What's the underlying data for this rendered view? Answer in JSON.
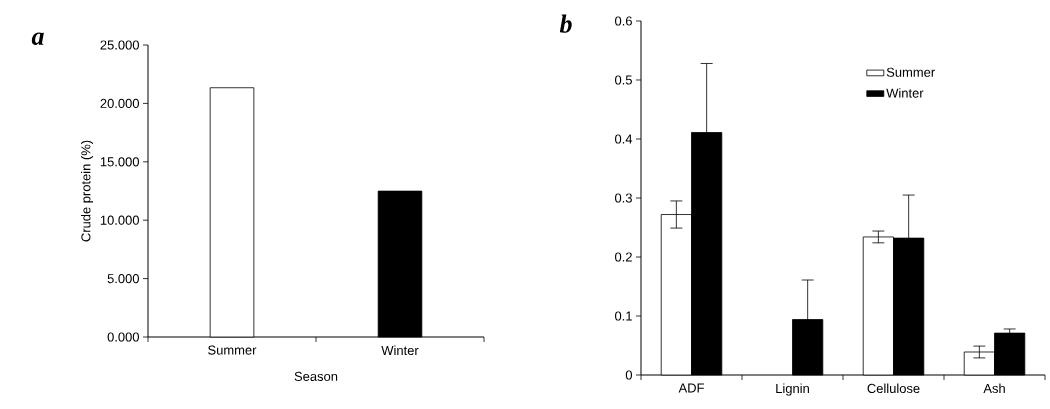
{
  "chart_data": [
    {
      "type": "bar",
      "title": "a",
      "xlabel": "Season",
      "ylabel": "Crude protein (%)",
      "categories": [
        "Summer",
        "Winter"
      ],
      "values": [
        21.34,
        12.49
      ],
      "colors": [
        "#ffffff",
        "#000000"
      ],
      "ylim": [
        0,
        25
      ],
      "yticks": [
        {
          "value": 0,
          "label": "0.000"
        },
        {
          "value": 5,
          "label": "5.000"
        },
        {
          "value": 10,
          "label": "10.000"
        },
        {
          "value": 15,
          "label": "15.000"
        },
        {
          "value": 20,
          "label": "20.000"
        },
        {
          "value": 25,
          "label": "25.000"
        }
      ]
    },
    {
      "type": "bar",
      "title": "b",
      "categories": [
        "ADF",
        "Lignin",
        "Cellulose",
        "Ash"
      ],
      "legend": "top",
      "series": [
        {
          "name": "Summer",
          "color": "#ffffff",
          "values": [
            0.272,
            null,
            0.234,
            0.039
          ],
          "errors": [
            0.023,
            null,
            0.01,
            0.01
          ]
        },
        {
          "name": "Winter",
          "color": "#000000",
          "values": [
            0.411,
            0.094,
            0.232,
            0.071
          ],
          "errors": [
            0.117,
            0.067,
            0.073,
            0.007
          ]
        }
      ],
      "ylim": [
        0,
        0.6
      ],
      "yticks": [
        0,
        0.1,
        0.2,
        0.3,
        0.4,
        0.5,
        0.6
      ]
    }
  ]
}
